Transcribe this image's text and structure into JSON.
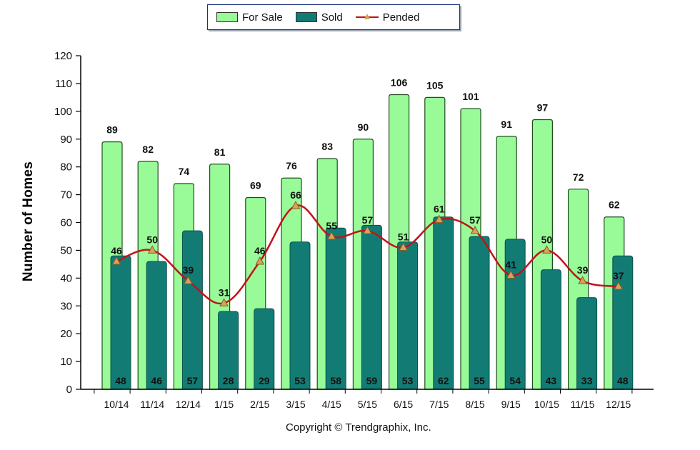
{
  "legend": {
    "for_sale": "For Sale",
    "sold": "Sold",
    "pended": "Pended"
  },
  "copyright": "Copyright © Trendgraphix, Inc.",
  "colors": {
    "for_sale_fill": "#98fb98",
    "for_sale_stroke": "#1e4d1e",
    "sold_fill": "#127c74",
    "pended_line": "#c0141a",
    "pended_marker": "#d9a25a"
  },
  "chart_data": {
    "type": "bar",
    "title": "",
    "xlabel": "",
    "ylabel": "Number of Homes",
    "ylim": [
      0,
      120
    ],
    "yticks": [
      0,
      10,
      20,
      30,
      40,
      50,
      60,
      70,
      80,
      90,
      100,
      110,
      120
    ],
    "grid": false,
    "legend_position": "top-center",
    "categories": [
      "10/14",
      "11/14",
      "12/14",
      "1/15",
      "2/15",
      "3/15",
      "4/15",
      "5/15",
      "6/15",
      "7/15",
      "8/15",
      "9/15",
      "10/15",
      "11/15",
      "12/15"
    ],
    "series": [
      {
        "name": "For Sale",
        "type": "bar",
        "values": [
          89,
          82,
          74,
          81,
          69,
          76,
          83,
          90,
          106,
          105,
          101,
          91,
          97,
          72,
          62
        ]
      },
      {
        "name": "Sold",
        "type": "bar",
        "values": [
          48,
          46,
          57,
          28,
          29,
          53,
          58,
          59,
          53,
          62,
          55,
          54,
          43,
          33,
          48
        ]
      },
      {
        "name": "Pended",
        "type": "line",
        "values": [
          46,
          50,
          39,
          31,
          46,
          66,
          55,
          57,
          51,
          61,
          57,
          41,
          50,
          39,
          37
        ]
      }
    ]
  }
}
